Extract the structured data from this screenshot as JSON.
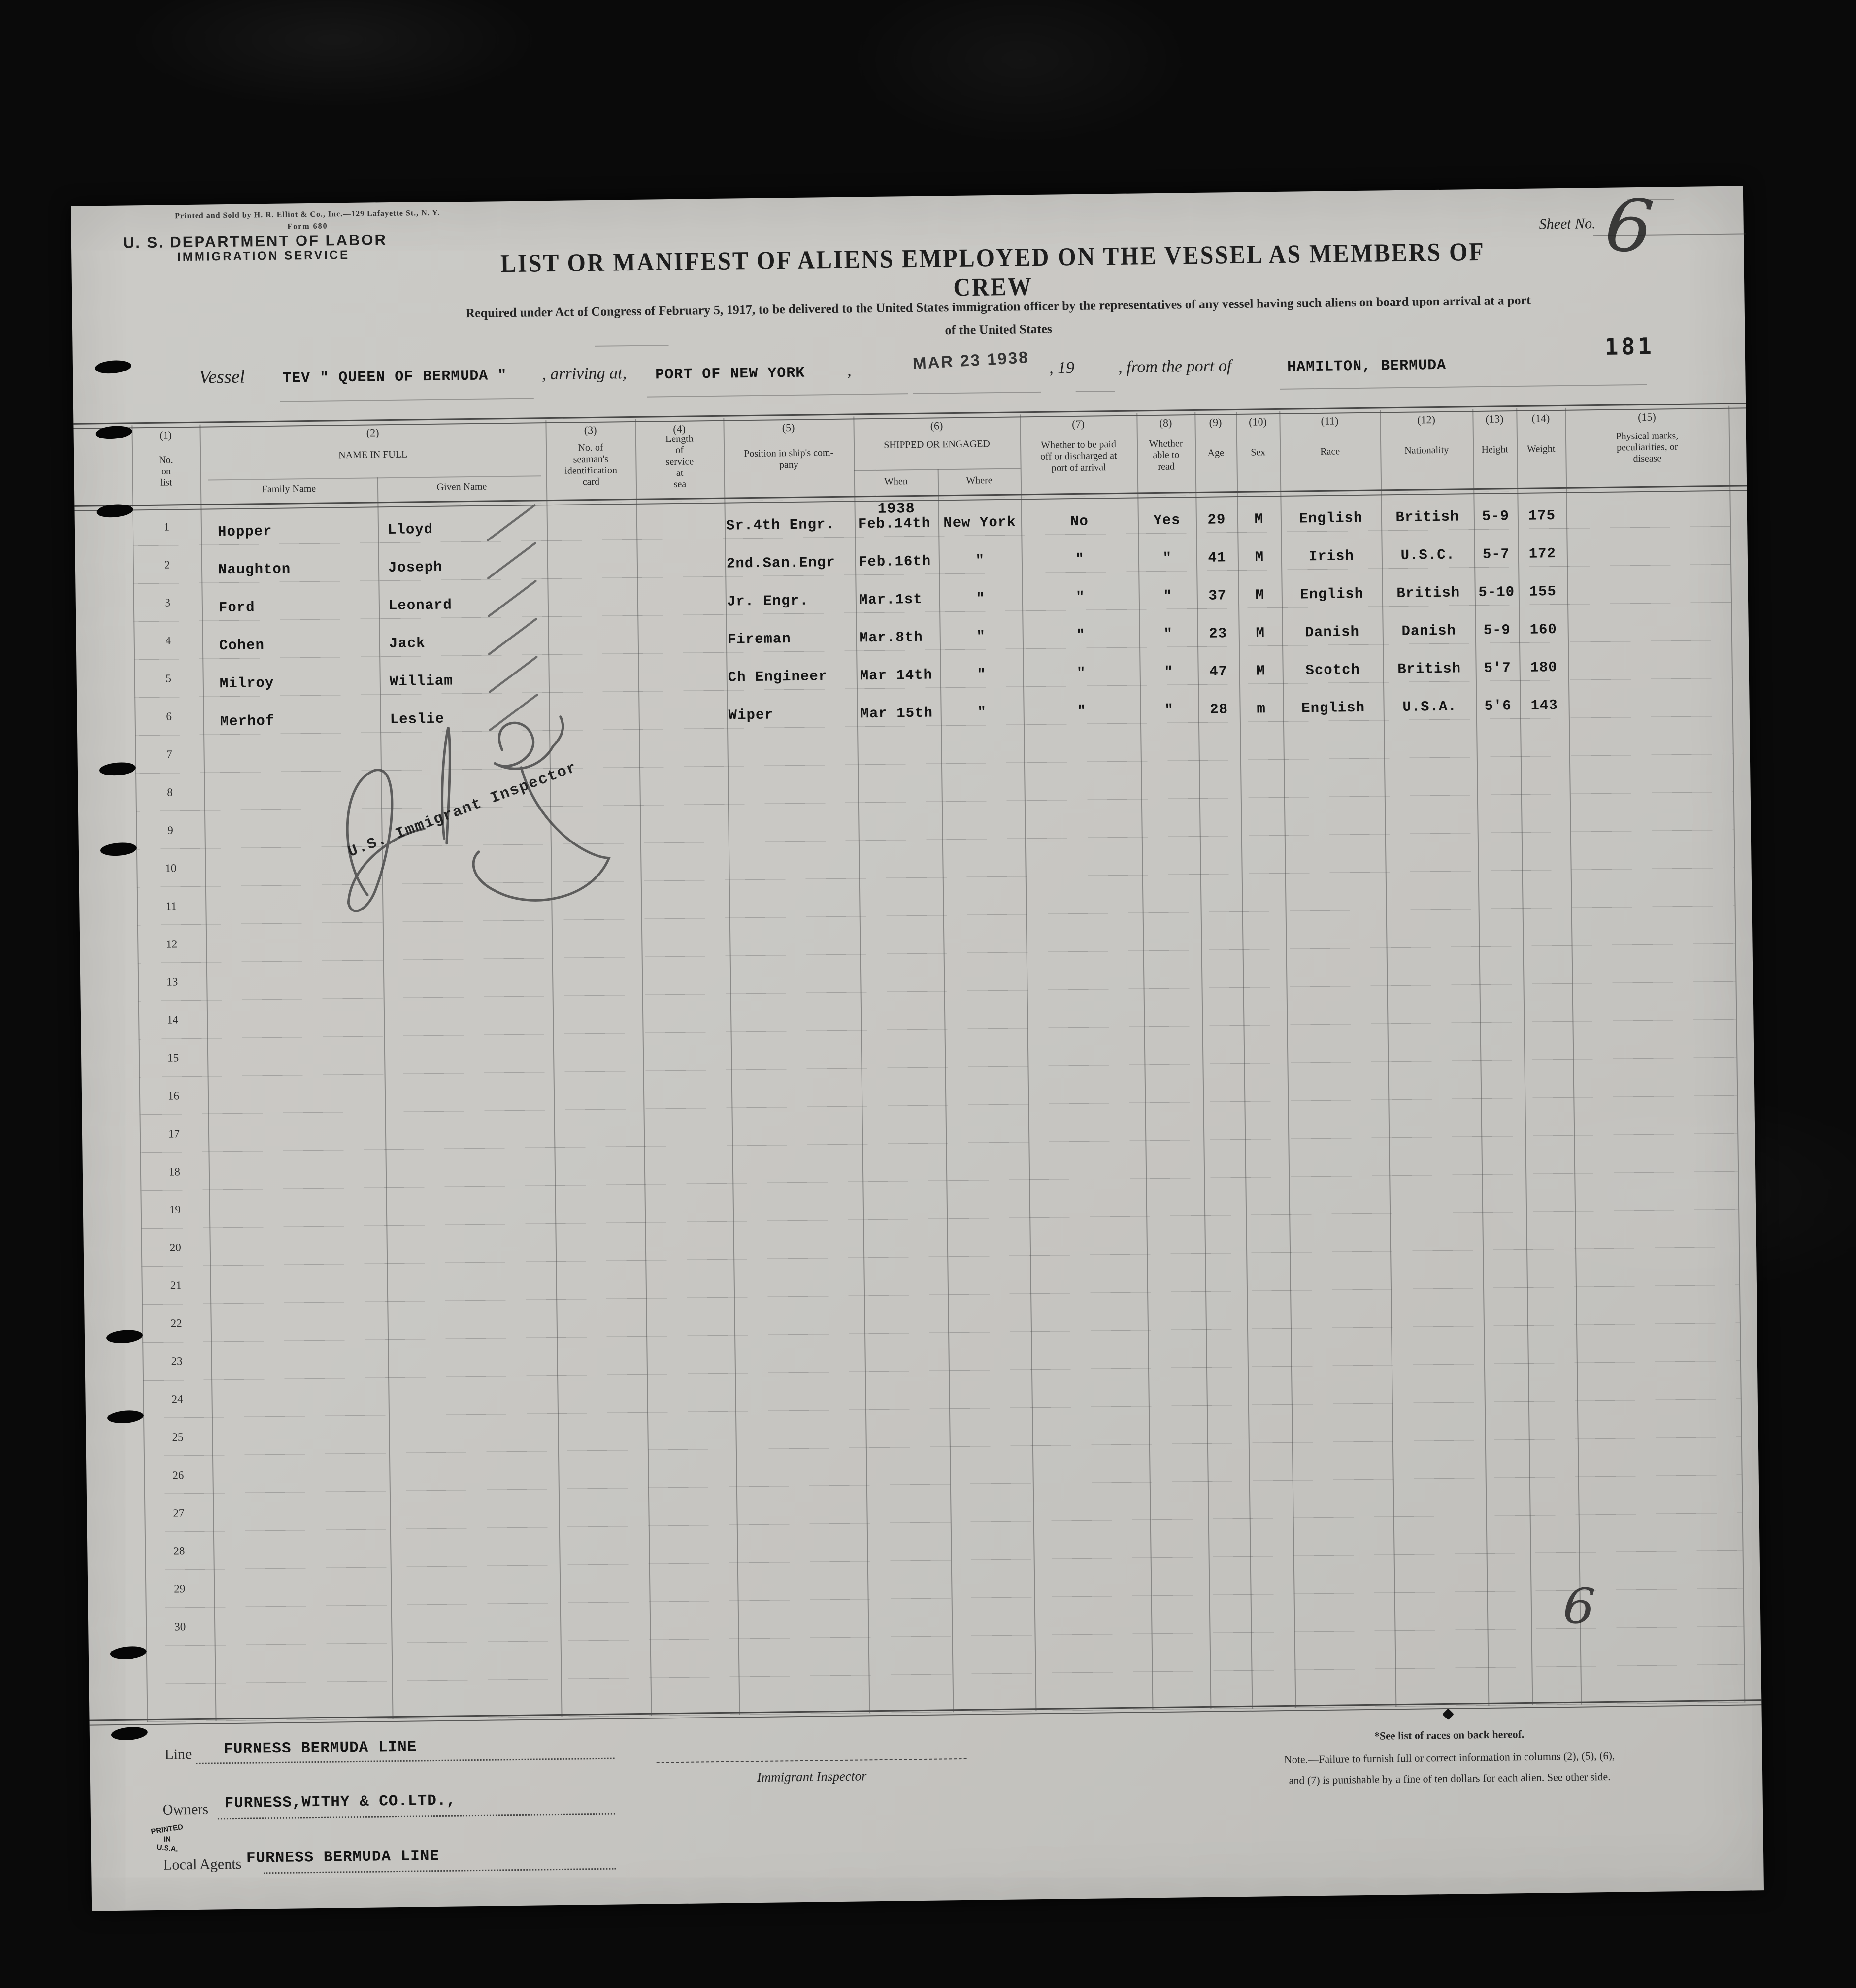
{
  "form": {
    "printer_line": "Printed and Sold by H. R. Elliot & Co., Inc.—129 Lafayette St., N. Y.",
    "form_no": "Form 680",
    "department": "U. S. DEPARTMENT OF LABOR",
    "service": "IMMIGRATION SERVICE",
    "sheet_no_label": "Sheet No.",
    "sheet_no_value": "6",
    "page_stamp": "181",
    "title": "LIST OR MANIFEST OF ALIENS EMPLOYED ON THE VESSEL AS MEMBERS OF CREW",
    "subtitle_line1": "Required under Act of Congress of February 5, 1917, to be delivered to the United States immigration officer by the representatives of any vessel having such aliens on board upon arrival at a port",
    "subtitle_line2": "of the United States"
  },
  "vessel_line": {
    "label": "Vessel",
    "vessel_name": "TEV \" QUEEN OF BERMUDA \"",
    "arriving_label": ", arriving at,",
    "port": "PORT OF NEW YORK",
    "comma": ",",
    "date_stamp": "MAR 23 1938",
    "year_label": ", 19",
    "from_label": ", from the port of",
    "from_port": "HAMILTON, BERMUDA"
  },
  "table": {
    "year_note": "1938",
    "columns": [
      {
        "num": "(1)",
        "label": "No.\non\nlist"
      },
      {
        "num": "(2)",
        "label": "NAME IN FULL"
      },
      {
        "num": "(3)",
        "label": "No. of\nseaman's\nidentification\ncard"
      },
      {
        "num": "(4)",
        "label": "Length\nof\nservice\nat\nsea"
      },
      {
        "num": "(5)",
        "label": "Position in ship's com-\npany"
      },
      {
        "num": "(6)",
        "label": "SHIPPED OR ENGAGED"
      },
      {
        "num": "(7)",
        "label": "Whether to be paid\noff or discharged at\nport of arrival"
      },
      {
        "num": "(8)",
        "label": "Whether\nable to\nread"
      },
      {
        "num": "(9)",
        "label": "Age"
      },
      {
        "num": "(10)",
        "label": "Sex"
      },
      {
        "num": "(11)",
        "label": "Race"
      },
      {
        "num": "(12)",
        "label": "Nationality"
      },
      {
        "num": "(13)",
        "label": "Height"
      },
      {
        "num": "(14)",
        "label": "Weight"
      },
      {
        "num": "(15)",
        "label": "Physical marks,\npeculiarities, or\ndisease"
      }
    ],
    "subheaders": {
      "family": "Family Name",
      "given": "Given Name",
      "when": "When",
      "where": "Where"
    },
    "rows": [
      {
        "no": "1",
        "family": "Hopper",
        "given": "Lloyd",
        "position": "Sr.4th Engr.",
        "when": "Feb.14th",
        "where": "New York",
        "paid_off": "No",
        "read": "Yes",
        "age": "29",
        "sex": "M",
        "race": "English",
        "nationality": "British",
        "height": "5-9",
        "weight": "175"
      },
      {
        "no": "2",
        "family": "Naughton",
        "given": "Joseph",
        "position": "2nd.San.Engr",
        "when": "Feb.16th",
        "where": "\"",
        "paid_off": "\"",
        "read": "\"",
        "age": "41",
        "sex": "M",
        "race": "Irish",
        "nationality": "U.S.C.",
        "height": "5-7",
        "weight": "172"
      },
      {
        "no": "3",
        "family": "Ford",
        "given": "Leonard",
        "position": "Jr. Engr.",
        "when": "Mar.1st",
        "where": "\"",
        "paid_off": "\"",
        "read": "\"",
        "age": "37",
        "sex": "M",
        "race": "English",
        "nationality": "British",
        "height": "5-10",
        "weight": "155"
      },
      {
        "no": "4",
        "family": "Cohen",
        "given": "Jack",
        "position": "Fireman",
        "when": "Mar.8th",
        "where": "\"",
        "paid_off": "\"",
        "read": "\"",
        "age": "23",
        "sex": "M",
        "race": "Danish",
        "nationality": "Danish",
        "height": "5-9",
        "weight": "160"
      },
      {
        "no": "5",
        "family": "Milroy",
        "given": "William",
        "position": "Ch Engineer",
        "when": "Mar 14th",
        "where": "\"",
        "paid_off": "\"",
        "read": "\"",
        "age": "47",
        "sex": "M",
        "race": "Scotch",
        "nationality": "British",
        "height": "5'7",
        "weight": "180"
      },
      {
        "no": "6",
        "family": "Merhof",
        "given": "Leslie",
        "position": "Wiper",
        "when": "Mar 15th",
        "where": "\"",
        "paid_off": "\"",
        "read": "\"",
        "age": "28",
        "sex": "m",
        "race": "English",
        "nationality": "U.S.A.",
        "height": "5'6",
        "weight": "143"
      }
    ],
    "empty_row_numbers": [
      "7",
      "8",
      "9",
      "10",
      "11",
      "12",
      "13",
      "14",
      "15",
      "16",
      "17",
      "18",
      "19",
      "20",
      "21",
      "22",
      "23",
      "24",
      "25",
      "26",
      "27",
      "28",
      "29",
      "30"
    ]
  },
  "signature": {
    "stamp_text": "U.S. Immigrant Inspector"
  },
  "footer": {
    "line_label": "Line",
    "line_value": "FURNESS BERMUDA LINE",
    "owners_label": "Owners",
    "owners_value": "FURNESS,WITHY & CO.LTD.,",
    "agents_label": "Local Agents",
    "agents_value": "FURNESS BERMUDA LINE",
    "inspector_label": "Immigrant Inspector",
    "races_note": "*See list of races on back hereof.",
    "note_line1": "Note.—Failure to furnish full or correct information in columns (2), (5), (6),",
    "note_line2": "and (7) is punishable by a fine of ten dollars for each alien.  See other side.",
    "printed_in_1": "PRINTED",
    "printed_in_2": "IN",
    "printed_in_3": "U.S.A.",
    "handwritten_six": "6"
  }
}
